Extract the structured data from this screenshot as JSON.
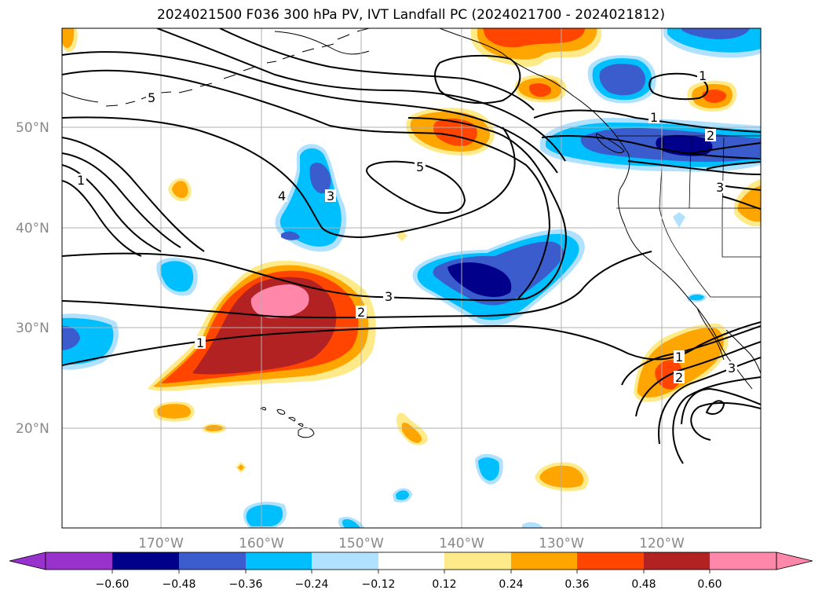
{
  "title": "2024021500 F036 300 hPa PV, IVT Landfall PC (2024021700 - 2024021812)",
  "map": {
    "lat_labels": [
      "50°N",
      "40°N",
      "30°N",
      "20°N"
    ],
    "lon_labels": [
      "170°W",
      "160°W",
      "150°W",
      "140°W",
      "130°W",
      "120°W"
    ],
    "contour_levels": [
      "1",
      "2",
      "3",
      "4",
      "5"
    ],
    "shading_variable": "IVT Landfall PC",
    "contour_variable": "300 hPa PV"
  },
  "colorbar": {
    "ticks": [
      "−0.60",
      "−0.48",
      "−0.36",
      "−0.24",
      "−0.12",
      "0.12",
      "0.24",
      "0.36",
      "0.48",
      "0.60"
    ],
    "colors": [
      "#9932cc",
      "#00008b",
      "#3a5ccc",
      "#00bfff",
      "#b0e2ff",
      "#ffffff",
      "#ffea8a",
      "#ffa500",
      "#ff4500",
      "#b22222",
      "#ff88aa"
    ],
    "extend": "both"
  },
  "colors": {
    "gridline": "#b0b0b0",
    "contour": "#000000",
    "coastline": "#000000",
    "label_gray": "#888888"
  }
}
